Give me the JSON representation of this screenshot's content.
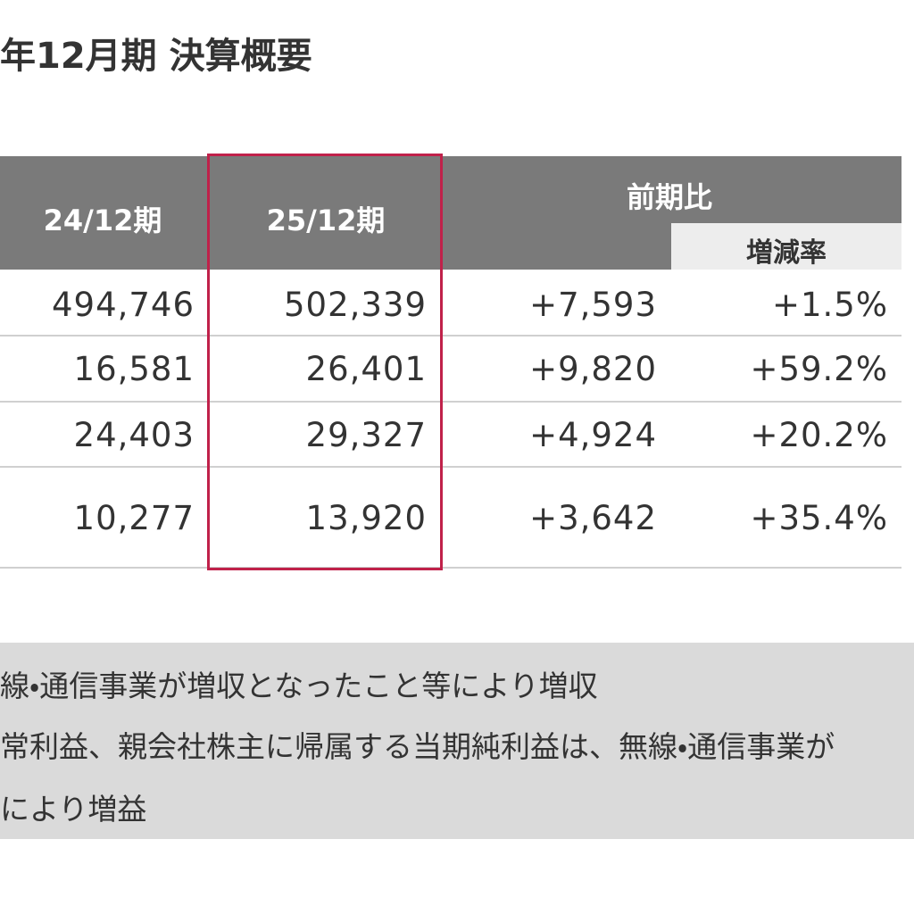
{
  "header": {
    "title": "年12月期 決算概要"
  },
  "table": {
    "columns": [
      "24/12期",
      "25/12期",
      "前期比"
    ],
    "subheader": "増減率",
    "rows": [
      [
        "494,746",
        "502,339",
        "+7,593",
        "+1.5%"
      ],
      [
        "16,581",
        "26,401",
        "+9,820",
        "+59.2%"
      ],
      [
        "24,403",
        "29,327",
        "+4,924",
        "+20.2%"
      ],
      [
        "10,277",
        "13,920",
        "+3,642",
        "+35.4%"
      ]
    ]
  },
  "notes": [
    "線・通信事業が増収となったこと等により増収",
    "常利益、親会社株主に帰属する当期純利益は、無線・通信事業が",
    "により増益"
  ]
}
